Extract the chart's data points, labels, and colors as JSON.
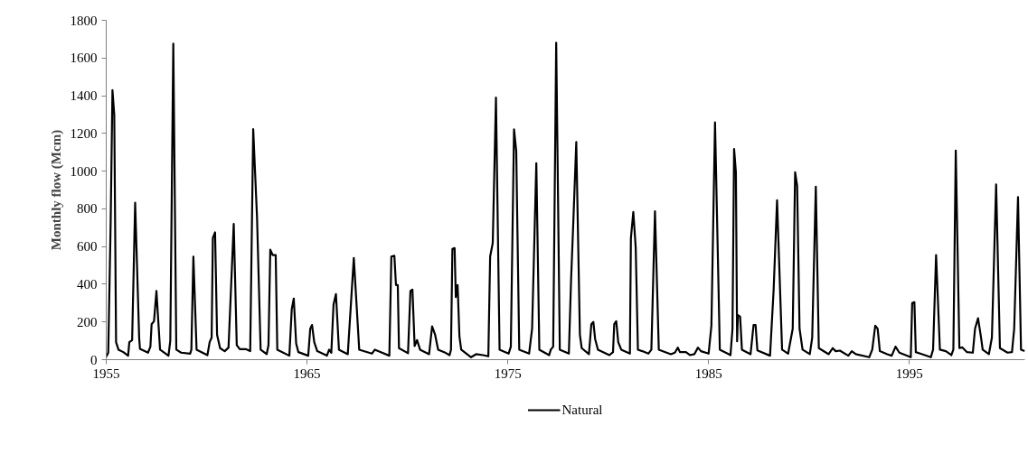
{
  "chart_data": {
    "type": "line",
    "ylabel": "Monthly flow (Mcm)",
    "xlim": [
      1955,
      2000.75
    ],
    "xticks": [
      1955,
      1965,
      1975,
      1985,
      1995
    ],
    "ylim": [
      0,
      1800
    ],
    "yticks": [
      0,
      200,
      400,
      600,
      800,
      1000,
      1200,
      1400,
      1600,
      1800
    ],
    "grid": false,
    "legend": "bottom",
    "marker": "none",
    "line_style": "solid",
    "series": [
      {
        "name": "Natural",
        "color": "#000000",
        "x": [
          1955.0,
          1955.1,
          1955.22,
          1955.31,
          1955.4,
          1955.49,
          1955.61,
          1955.85,
          1956.09,
          1956.15,
          1956.29,
          1956.44,
          1956.64,
          1956.68,
          1957.08,
          1957.2,
          1957.26,
          1957.38,
          1957.5,
          1957.68,
          1958.1,
          1958.19,
          1958.34,
          1958.49,
          1958.73,
          1959.18,
          1959.24,
          1959.34,
          1959.5,
          1960.04,
          1960.15,
          1960.25,
          1960.31,
          1960.42,
          1960.52,
          1960.67,
          1960.9,
          1961.09,
          1961.35,
          1961.5,
          1961.65,
          1961.95,
          1962.17,
          1962.32,
          1962.51,
          1962.69,
          1962.99,
          1963.08,
          1963.17,
          1963.29,
          1963.44,
          1963.52,
          1964.12,
          1964.24,
          1964.34,
          1964.46,
          1964.57,
          1965.06,
          1965.16,
          1965.25,
          1965.36,
          1965.51,
          1965.99,
          1966.1,
          1966.21,
          1966.32,
          1966.44,
          1966.59,
          1967.03,
          1967.33,
          1967.6,
          1968.23,
          1968.38,
          1968.68,
          1969.1,
          1969.2,
          1969.35,
          1969.43,
          1969.52,
          1969.58,
          1970.03,
          1970.15,
          1970.25,
          1970.36,
          1970.48,
          1970.63,
          1971.08,
          1971.23,
          1971.38,
          1971.53,
          1971.83,
          1972.1,
          1972.17,
          1972.24,
          1972.35,
          1972.41,
          1972.5,
          1972.59,
          1972.68,
          1973.17,
          1973.42,
          1973.77,
          1974.03,
          1974.12,
          1974.25,
          1974.41,
          1974.59,
          1975.04,
          1975.15,
          1975.31,
          1975.42,
          1975.57,
          1976.06,
          1976.21,
          1976.42,
          1976.57,
          1977.06,
          1977.14,
          1977.26,
          1977.41,
          1977.59,
          1978.04,
          1978.15,
          1978.26,
          1978.41,
          1978.59,
          1978.68,
          1979.04,
          1979.16,
          1979.26,
          1979.35,
          1979.49,
          1980.06,
          1980.24,
          1980.3,
          1980.4,
          1980.5,
          1980.65,
          1981.08,
          1981.13,
          1981.25,
          1981.37,
          1981.48,
          1981.7,
          1982.0,
          1982.15,
          1982.33,
          1982.52,
          1983.12,
          1983.32,
          1983.47,
          1983.57,
          1983.87,
          1984.07,
          1984.29,
          1984.47,
          1984.62,
          1985.0,
          1985.14,
          1985.32,
          1985.56,
          1986.01,
          1986.09,
          1986.19,
          1986.27,
          1986.36,
          1986.42,
          1986.46,
          1986.57,
          1986.66,
          1987.09,
          1987.24,
          1987.34,
          1987.43,
          1988.06,
          1988.24,
          1988.41,
          1988.66,
          1988.96,
          1989.19,
          1989.31,
          1989.41,
          1989.53,
          1989.68,
          1990.04,
          1990.16,
          1990.34,
          1990.49,
          1990.98,
          1991.18,
          1991.33,
          1991.54,
          1991.96,
          1992.13,
          1992.33,
          1993.0,
          1993.15,
          1993.3,
          1993.42,
          1993.53,
          1993.9,
          1994.12,
          1994.31,
          1994.5,
          1995.07,
          1995.14,
          1995.25,
          1995.32,
          1996.07,
          1996.18,
          1996.33,
          1996.52,
          1996.82,
          1997.09,
          1997.19,
          1997.31,
          1997.49,
          1997.64,
          1997.87,
          1998.16,
          1998.27,
          1998.42,
          1998.57,
          1998.65,
          1998.96,
          1999.11,
          1999.32,
          1999.51,
          1999.89,
          2000.11,
          2000.22,
          2000.41,
          2000.56,
          2000.75
        ],
        "values": [
          15,
          37,
          723,
          1430,
          1298,
          93,
          53,
          40,
          21,
          93,
          104,
          832,
          117,
          57,
          37,
          69,
          188,
          204,
          364,
          53,
          21,
          100,
          1676,
          53,
          37,
          32,
          53,
          547,
          53,
          24,
          93,
          117,
          646,
          675,
          132,
          61,
          45,
          64,
          720,
          77,
          56,
          56,
          45,
          1223,
          755,
          53,
          29,
          77,
          583,
          555,
          555,
          53,
          21,
          268,
          324,
          85,
          40,
          21,
          164,
          184,
          93,
          45,
          21,
          53,
          37,
          292,
          348,
          53,
          29,
          539,
          53,
          32,
          53,
          40,
          21,
          547,
          551,
          396,
          396,
          61,
          34,
          364,
          372,
          72,
          104,
          53,
          29,
          177,
          132,
          53,
          40,
          24,
          53,
          587,
          592,
          332,
          396,
          124,
          53,
          13,
          29,
          24,
          18,
          547,
          619,
          1390,
          53,
          32,
          69,
          1221,
          1106,
          53,
          32,
          164,
          1042,
          53,
          24,
          53,
          69,
          1681,
          53,
          32,
          420,
          723,
          1154,
          132,
          61,
          29,
          188,
          200,
          109,
          53,
          24,
          40,
          188,
          204,
          93,
          53,
          32,
          643,
          784,
          595,
          53,
          45,
          32,
          53,
          787,
          53,
          29,
          37,
          64,
          40,
          40,
          24,
          29,
          64,
          45,
          32,
          180,
          1258,
          53,
          29,
          24,
          164,
          1117,
          994,
          97,
          236,
          228,
          53,
          29,
          184,
          184,
          49,
          21,
          372,
          846,
          53,
          32,
          164,
          994,
          922,
          164,
          53,
          29,
          117,
          918,
          61,
          29,
          61,
          45,
          48,
          21,
          45,
          29,
          13,
          53,
          180,
          164,
          45,
          29,
          21,
          69,
          37,
          13,
          300,
          305,
          40,
          13,
          53,
          555,
          53,
          45,
          24,
          53,
          1109,
          61,
          65,
          40,
          37,
          164,
          220,
          117,
          53,
          29,
          117,
          930,
          61,
          37,
          40,
          164,
          862,
          53,
          45
        ]
      }
    ]
  }
}
